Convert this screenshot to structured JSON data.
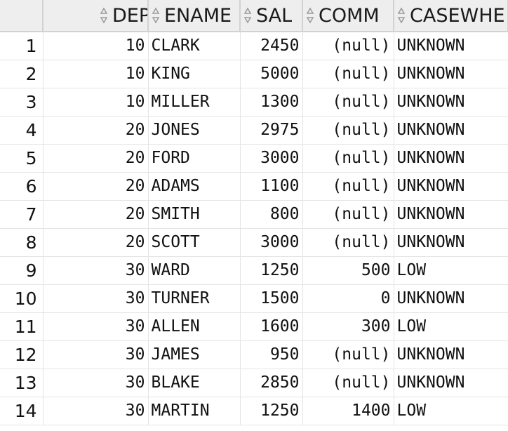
{
  "grid": {
    "columns": [
      {
        "key": "DEPTNO",
        "label": "DEPTNO"
      },
      {
        "key": "ENAME",
        "label": "ENAME"
      },
      {
        "key": "SAL",
        "label": "SAL"
      },
      {
        "key": "COMM",
        "label": "COMM"
      },
      {
        "key": "CASEWHE",
        "label": "CASEWHE"
      }
    ],
    "rows": [
      {
        "num": "1",
        "deptno": "10",
        "ename": "CLARK",
        "sal": "2450",
        "comm": "(null)",
        "casewhe": "UNKNOWN"
      },
      {
        "num": "2",
        "deptno": "10",
        "ename": "KING",
        "sal": "5000",
        "comm": "(null)",
        "casewhe": "UNKNOWN"
      },
      {
        "num": "3",
        "deptno": "10",
        "ename": "MILLER",
        "sal": "1300",
        "comm": "(null)",
        "casewhe": "UNKNOWN"
      },
      {
        "num": "4",
        "deptno": "20",
        "ename": "JONES",
        "sal": "2975",
        "comm": "(null)",
        "casewhe": "UNKNOWN"
      },
      {
        "num": "5",
        "deptno": "20",
        "ename": "FORD",
        "sal": "3000",
        "comm": "(null)",
        "casewhe": "UNKNOWN"
      },
      {
        "num": "6",
        "deptno": "20",
        "ename": "ADAMS",
        "sal": "1100",
        "comm": "(null)",
        "casewhe": "UNKNOWN"
      },
      {
        "num": "7",
        "deptno": "20",
        "ename": "SMITH",
        "sal": "800",
        "comm": "(null)",
        "casewhe": "UNKNOWN"
      },
      {
        "num": "8",
        "deptno": "20",
        "ename": "SCOTT",
        "sal": "3000",
        "comm": "(null)",
        "casewhe": "UNKNOWN"
      },
      {
        "num": "9",
        "deptno": "30",
        "ename": "WARD",
        "sal": "1250",
        "comm": "500",
        "casewhe": "LOW"
      },
      {
        "num": "10",
        "deptno": "30",
        "ename": "TURNER",
        "sal": "1500",
        "comm": "0",
        "casewhe": "UNKNOWN"
      },
      {
        "num": "11",
        "deptno": "30",
        "ename": "ALLEN",
        "sal": "1600",
        "comm": "300",
        "casewhe": "LOW"
      },
      {
        "num": "12",
        "deptno": "30",
        "ename": "JAMES",
        "sal": "950",
        "comm": "(null)",
        "casewhe": "UNKNOWN"
      },
      {
        "num": "13",
        "deptno": "30",
        "ename": "BLAKE",
        "sal": "2850",
        "comm": "(null)",
        "casewhe": "UNKNOWN"
      },
      {
        "num": "14",
        "deptno": "30",
        "ename": "MARTIN",
        "sal": "1250",
        "comm": "1400",
        "casewhe": "LOW"
      }
    ]
  },
  "icons": {
    "sort": "sort-arrows-icon"
  },
  "colors": {
    "header_bg": "#eeeeee",
    "grid_line": "#e4e4e4",
    "header_border": "#d2d2d2"
  }
}
